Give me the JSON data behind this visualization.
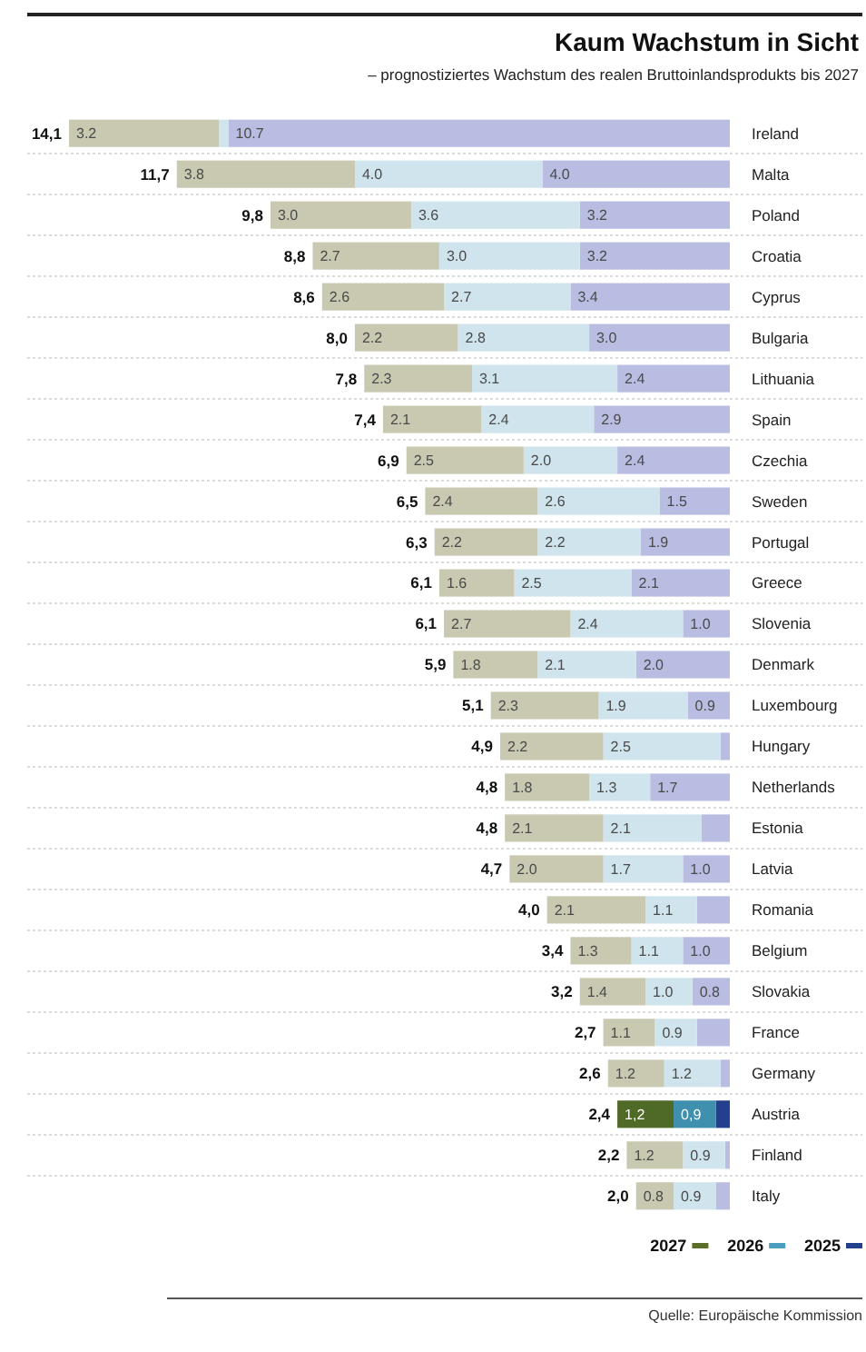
{
  "chart_data": {
    "type": "bar",
    "orientation": "horizontal",
    "stacked": true,
    "title": "Kaum Wachstum in Sicht",
    "subtitle": "– prognostiziertes Wachstum des realen Bruttoinlandsprodukts bis 2027",
    "categories": [
      "Ireland",
      "Malta",
      "Poland",
      "Croatia",
      "Cyprus",
      "Bulgaria",
      "Lithuania",
      "Spain",
      "Czechia",
      "Sweden",
      "Portugal",
      "Greece",
      "Slovenia",
      "Denmark",
      "Luxembourg",
      "Hungary",
      "Netherlands",
      "Estonia",
      "Latvia",
      "Romania",
      "Belgium",
      "Slovakia",
      "France",
      "Germany",
      "Austria",
      "Finland",
      "Italy"
    ],
    "series": [
      {
        "name": "2025",
        "color": "#23408e",
        "colors": [
          "#b9bde2",
          "#b9bde2",
          "#b9bde2",
          "#b9bde2",
          "#b9bde2",
          "#b9bde2",
          "#b9bde2",
          "#b9bde2",
          "#b9bde2",
          "#b9bde2",
          "#b9bde2",
          "#b9bde2",
          "#b9bde2",
          "#b9bde2",
          "#b9bde2",
          "#b9bde2",
          "#b9bde2",
          "#b9bde2",
          "#b9bde2",
          "#b9bde2",
          "#b9bde2",
          "#b9bde2",
          "#b9bde2",
          "#b9bde2",
          "#23408e",
          "#b9bde2",
          "#b9bde2"
        ],
        "values": [
          10.7,
          4.0,
          3.2,
          3.2,
          3.4,
          3.0,
          2.4,
          2.9,
          2.4,
          1.5,
          1.9,
          2.1,
          1.0,
          2.0,
          0.9,
          0.2,
          1.7,
          0.6,
          1.0,
          0.7,
          1.0,
          0.8,
          0.7,
          0.2,
          0.3,
          0.1,
          0.3
        ],
        "value_labels": [
          "10.7",
          "4.0",
          "3.2",
          "3.2",
          "3.4",
          "3.0",
          "2.4",
          "2.9",
          "2.4",
          "1.5",
          "1.9",
          "2.1",
          "1.0",
          "2.0",
          "0.9",
          null,
          "1.7",
          null,
          "1.0",
          null,
          "1.0",
          "0.8",
          null,
          null,
          null,
          null,
          null
        ]
      },
      {
        "name": "2026",
        "color": "#4a9cc0",
        "colors": [
          "#cfe4ec",
          "#cfe4ec",
          "#cfe4ec",
          "#cfe4ec",
          "#cfe4ec",
          "#cfe4ec",
          "#cfe4ec",
          "#cfe4ec",
          "#cfe4ec",
          "#cfe4ec",
          "#cfe4ec",
          "#cfe4ec",
          "#cfe4ec",
          "#cfe4ec",
          "#cfe4ec",
          "#cfe4ec",
          "#cfe4ec",
          "#cfe4ec",
          "#cfe4ec",
          "#cfe4ec",
          "#cfe4ec",
          "#cfe4ec",
          "#cfe4ec",
          "#cfe4ec",
          "#3f8fae",
          "#cfe4ec",
          "#cfe4ec"
        ],
        "values": [
          0.2,
          4.0,
          3.6,
          3.0,
          2.7,
          2.8,
          3.1,
          2.4,
          2.0,
          2.6,
          2.2,
          2.5,
          2.4,
          2.1,
          1.9,
          2.5,
          1.3,
          2.1,
          1.7,
          1.1,
          1.1,
          1.0,
          0.9,
          1.2,
          0.9,
          0.9,
          0.9
        ],
        "value_labels": [
          null,
          "4.0",
          "3.6",
          "3.0",
          "2.7",
          "2.8",
          "3.1",
          "2.4",
          "2.0",
          "2.6",
          "2.2",
          "2.5",
          "2.4",
          "2.1",
          "1.9",
          "2.5",
          "1.3",
          "2.1",
          "1.7",
          "1.1",
          "1.1",
          "1.0",
          "0.9",
          "1.2",
          "0,9",
          "0.9",
          "0.9"
        ]
      },
      {
        "name": "2027",
        "color": "#5a6e2a",
        "colors": [
          "#c9c9b2",
          "#c9c9b2",
          "#c9c9b2",
          "#c9c9b2",
          "#c9c9b2",
          "#c9c9b2",
          "#c9c9b2",
          "#c9c9b2",
          "#c9c9b2",
          "#c9c9b2",
          "#c9c9b2",
          "#c9c9b2",
          "#c9c9b2",
          "#c9c9b2",
          "#c9c9b2",
          "#c9c9b2",
          "#c9c9b2",
          "#c9c9b2",
          "#c9c9b2",
          "#c9c9b2",
          "#c9c9b2",
          "#c9c9b2",
          "#c9c9b2",
          "#c9c9b2",
          "#4f6a27",
          "#c9c9b2",
          "#c9c9b2"
        ],
        "values": [
          3.2,
          3.8,
          3.0,
          2.7,
          2.6,
          2.2,
          2.3,
          2.1,
          2.5,
          2.4,
          2.2,
          1.6,
          2.7,
          1.8,
          2.3,
          2.2,
          1.8,
          2.1,
          2.0,
          2.1,
          1.3,
          1.4,
          1.1,
          1.2,
          1.2,
          1.2,
          0.8
        ],
        "value_labels": [
          "3.2",
          "3.8",
          "3.0",
          "2.7",
          "2.6",
          "2.2",
          "2.3",
          "2.1",
          "2.5",
          "2.4",
          "2.2",
          "1.6",
          "2.7",
          "1.8",
          "2.3",
          "2.2",
          "1.8",
          "2.1",
          "2.0",
          "2.1",
          "1.3",
          "1.4",
          "1.1",
          "1.2",
          "1,2",
          "1.2",
          "0.8"
        ]
      }
    ],
    "totals": [
      "14,1",
      "11,7",
      "9,8",
      "8,8",
      "8,6",
      "8,0",
      "7,8",
      "7,4",
      "6,9",
      "6,5",
      "6,3",
      "6,1",
      "6,1",
      "5,9",
      "5,1",
      "4,9",
      "4,8",
      "4,8",
      "4,7",
      "4,0",
      "3,4",
      "3,2",
      "2,7",
      "2,6",
      "2,4",
      "2,2",
      "2,0"
    ],
    "grid": "y",
    "legend": "bottom right",
    "annotations": [
      "Quelle: Europäische Kommission"
    ]
  }
}
